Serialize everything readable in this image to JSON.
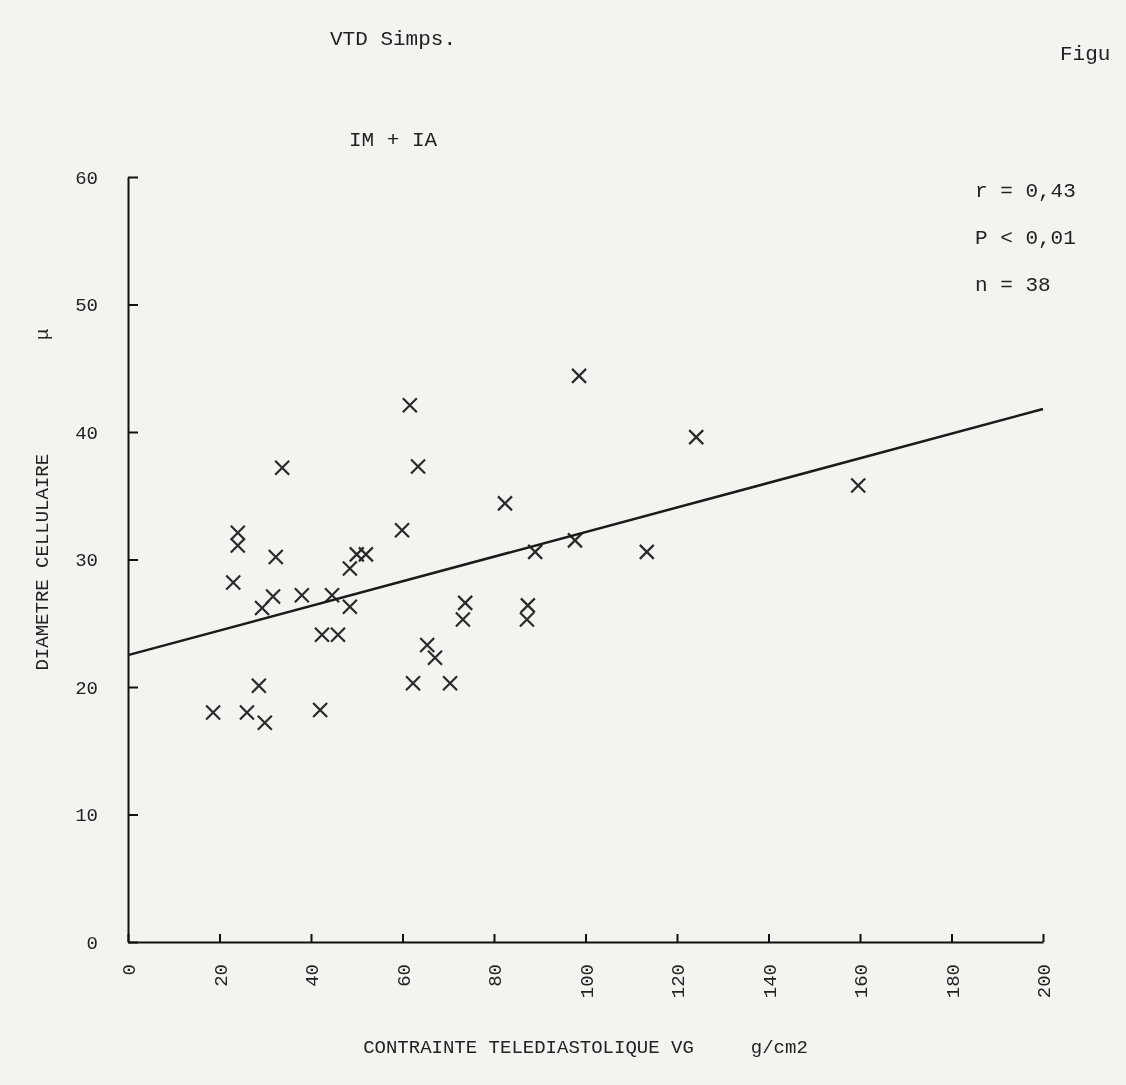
{
  "chart_data": {
    "type": "scatter",
    "title": "VTD Simps.",
    "subtitle": "IM + IA",
    "xlabel": "CONTRAINTE TELEDIASTOLIQUE VG     g/cm2",
    "ylabel": "DIAMETRE CELLULAIRE          μ",
    "annotations": [
      "r = 0,43",
      "P < 0,01",
      "n = 38",
      "Figu"
    ],
    "xlim": [
      0,
      200
    ],
    "ylim": [
      0,
      60
    ],
    "xticks": [
      0,
      20,
      40,
      60,
      80,
      100,
      120,
      140,
      160,
      180,
      200
    ],
    "yticks": [
      0,
      10,
      20,
      30,
      40,
      50,
      60
    ],
    "grid": false,
    "series": [
      {
        "marker": "cross",
        "color": "#2a2a2a",
        "x": [
          61.6,
          33.7,
          63.4,
          24.0,
          24.0,
          32.3,
          59.9,
          50,
          52,
          48.5,
          23.0,
          31.7,
          38.0,
          44.6,
          29.3,
          48.5,
          73.7,
          73.2,
          42.4,
          45.9,
          65.4,
          67.1,
          28.6,
          62.3,
          70.4,
          18.6,
          26.0,
          29.9,
          42.0,
          98.6,
          124.2,
          82.4,
          97.7,
          89.0,
          113.4,
          87.4,
          87.2,
          159.6
        ],
        "values": [
          42.1,
          37.2,
          37.3,
          32.1,
          31.1,
          30.2,
          32.3,
          30.4,
          30.4,
          29.3,
          28.2,
          27.1,
          27.2,
          27.2,
          26.2,
          26.3,
          26.6,
          25.3,
          24.1,
          24.1,
          23.3,
          22.3,
          20.1,
          20.3,
          20.3,
          18.0,
          18.0,
          17.2,
          18.2,
          44.4,
          39.6,
          34.4,
          31.5,
          30.6,
          30.6,
          26.4,
          25.3,
          35.8
        ]
      },
      {
        "type": "line",
        "marker": "none",
        "line_style": "solid",
        "color": "#1a1a1a",
        "x": [
          0,
          200
        ],
        "values": [
          22.5,
          41.8
        ]
      }
    ]
  }
}
